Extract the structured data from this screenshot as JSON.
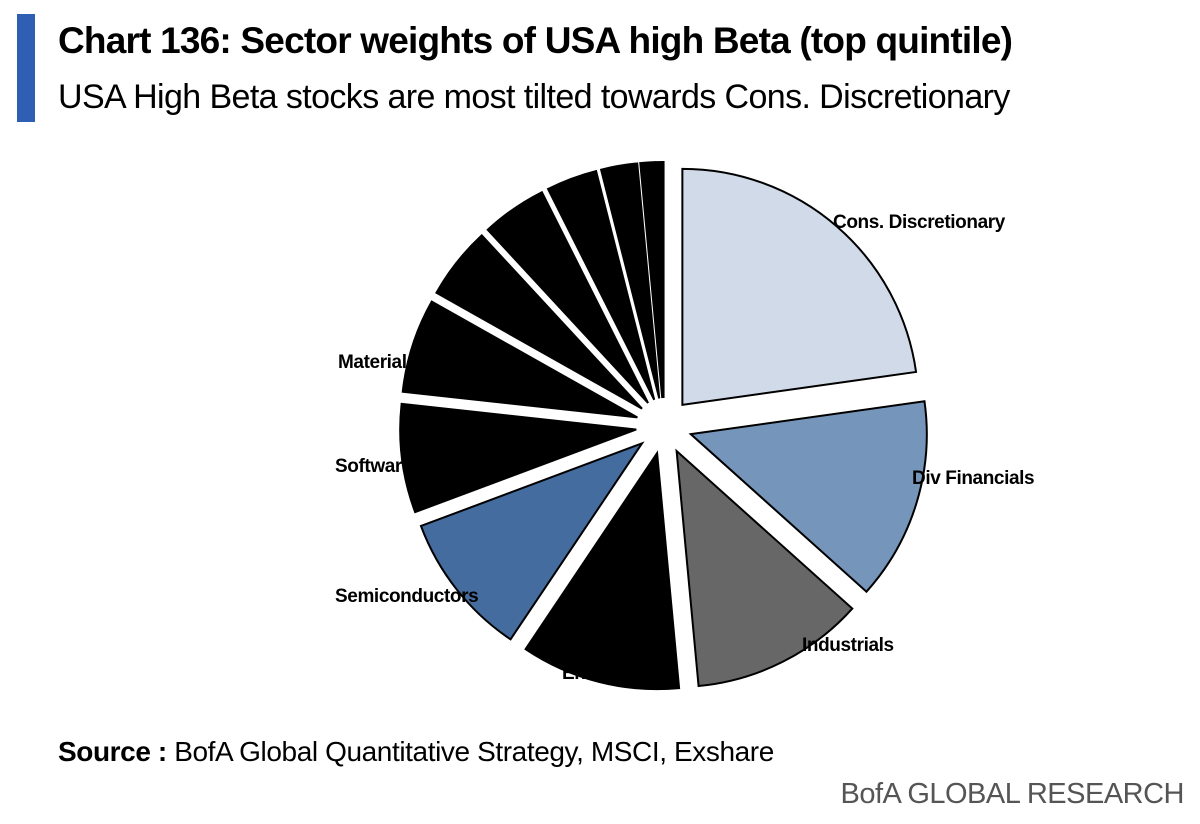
{
  "header": {
    "title": "Chart 136: Sector weights of USA high Beta (top quintile)",
    "subtitle": "USA High Beta stocks are most tilted towards Cons. Discretionary",
    "accent_color": "#2f5fb3"
  },
  "chart_data": {
    "type": "pie",
    "title": "Chart 136: Sector weights of USA high Beta (top quintile)",
    "slices": [
      {
        "label": "Cons. Discretionary",
        "value": 23,
        "color": "#d0dae8"
      },
      {
        "label": "Div Financials",
        "value": 14,
        "color": "#7595bb"
      },
      {
        "label": "Industrials",
        "value": 12,
        "color": "#676767"
      },
      {
        "label": "Energy",
        "value": 11,
        "color": "#000000"
      },
      {
        "label": "Semiconductors",
        "value": 10,
        "color": "#456c9e"
      },
      {
        "label": "Software",
        "value": 7.5,
        "color": "#000000"
      },
      {
        "label": "Materials",
        "value": 6.5,
        "color": "#000000"
      },
      {
        "label": "",
        "value": 5,
        "color": "#000000"
      },
      {
        "label": "",
        "value": 4.5,
        "color": "#000000"
      },
      {
        "label": "",
        "value": 3.5,
        "color": "#000000"
      },
      {
        "label": "",
        "value": 2.5,
        "color": "#000000"
      },
      {
        "label": "",
        "value": 1,
        "color": "#000000"
      },
      {
        "label": "",
        "value": 0.5,
        "color": "#000000"
      }
    ],
    "units": "% weight",
    "legend": "none (labels beside slices)"
  },
  "footer": {
    "source_label": "Source :",
    "source_text": "BofA Global Quantitative Strategy, MSCI, Exshare",
    "brand": "BofA GLOBAL RESEARCH"
  }
}
